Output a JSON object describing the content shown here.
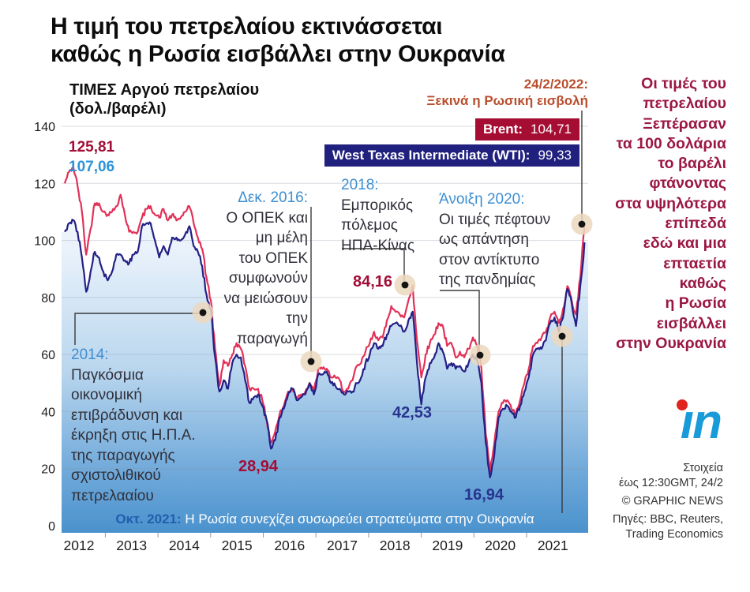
{
  "title": "Η τιμή του πετρελαίου εκτινάσσεται\nκαθώς η Ρωσία εισβάλλει στην Ουκρανία",
  "chart": {
    "subtitle": "ΤΙΜΕΣ Αργού πετρελαίου\n(δολ./βαρέλι)",
    "event_flag": "24/2/2022:\nΞεκινά η Ρωσική εισβολή",
    "badges": {
      "brent_label": "Brent:",
      "brent_value": "104,71",
      "wti_label": "West Texas Intermediate (WTI):",
      "wti_value": "99,33"
    },
    "start_labels": {
      "brent": "125,81",
      "wti": "107,06"
    },
    "value_labels": {
      "peak_2018": "84,16",
      "low_2016": "28,94",
      "low_2018": "42,53",
      "low_2020": "16,94"
    },
    "banner": {
      "prefix": "Οκτ. 2021:",
      "text": " Η Ρωσία συνεχίζει συσωρεύει στρατεύματα στην Ουκρανία"
    },
    "annotations": {
      "a2014": {
        "heading": "2014:",
        "body": "Παγκόσμια\nοικονομική\nεπιβράδυνση και\nέκρηξη στις Η.Π.Α.\nτης παραγωγής\nσχιστολιθικού\nπετρελααίου"
      },
      "a2016": {
        "heading": "Δεκ. 2016:",
        "body": "Ο ΟΠΕΚ και\nμη μέλη\nτου ΟΠΕΚ\nσυμφωνούν\nνα μειώσουν\nτην\nπαραγωγή"
      },
      "a2018": {
        "heading": "2018:",
        "body": "Εμπορικός\nπόλεμος\nΗΠΑ-Κίνας"
      },
      "a2020": {
        "heading": "Άνοιξη 2020:",
        "body": "Οι τιμές πέφτουν\nως απάντηση\nστον αντίκτυπο\nτης πανδημίας"
      }
    }
  },
  "sidebar": {
    "headline": "Οι τιμές του\nπετρελαίου\nΞεπέρασαν\nτα 100 δολάρια\nτο βαρέλι\nφτάνοντας\nστα υψηλότερα\nεπίπεδά\nεδώ και μια\nεπταετία\nκαθώς\nη Ρωσία\nεισβάλλει\nστην Ουκρανία"
  },
  "footer": {
    "logo_glyph": "ın",
    "data_note": "Στοιχεία\nέως 12:30GMT, 24/2",
    "copyright": "© GRAPHIC NEWS",
    "sources": "Πηγές: BBC, Reuters,\nTrading Economics"
  },
  "colors": {
    "brent_line": "#e23158",
    "brent_dark": "#a30d35",
    "wti_line": "#232086",
    "wti_label": "#28338f",
    "wti_light": "#2d93d8",
    "heading_blue": "#3e8ed2",
    "rust": "#b84e2d",
    "sidebar_maroon": "#9b1743",
    "banner_prefix": "#1f5fae",
    "badge_brent_bg": "#a60d33",
    "badge_wti_bg": "#20207e",
    "halo": "#ecd8bd",
    "grid": "#8b98a8"
  },
  "chart_data": {
    "type": "line",
    "title": "ΤΙΜΕΣ Αργού πετρελαίου (δολ./βαρέλι)",
    "ylabel": "δολ./βαρέλι",
    "ylim": [
      0,
      140
    ],
    "yticks": [
      0,
      20,
      40,
      60,
      80,
      100,
      120,
      140
    ],
    "x_labels": [
      "2012",
      "2013",
      "2014",
      "2015",
      "2016",
      "2017",
      "2018",
      "2019",
      "2020",
      "2021"
    ],
    "x_start": "2012-01",
    "x_end": "2022-02",
    "interval": "monthly",
    "grid": true,
    "legend_position": "top-right",
    "series": [
      {
        "name": "Brent",
        "values": [
          120,
          124,
          125.81,
          119,
          110,
          95,
          104,
          113,
          113,
          110,
          109,
          110,
          112,
          116,
          109,
          103,
          103,
          103,
          108,
          111,
          112,
          109,
          108,
          111,
          107,
          109,
          107,
          108,
          110,
          112,
          106,
          101,
          97,
          87,
          79,
          62,
          49,
          58,
          56,
          60,
          64,
          62,
          56,
          48,
          48,
          48,
          44,
          37,
          28.94,
          33,
          39,
          42,
          47,
          48,
          45,
          46,
          47,
          50,
          47,
          55,
          55,
          55,
          52,
          52,
          51,
          47,
          48,
          51,
          56,
          57,
          61,
          64,
          68,
          65,
          66,
          72,
          77,
          75,
          74,
          73,
          79,
          84.16,
          65,
          52,
          60,
          64,
          67,
          71,
          70,
          63,
          64,
          59,
          61,
          59,
          62,
          66,
          63,
          55,
          32,
          19,
          29,
          40,
          43,
          44,
          41,
          39,
          44,
          50,
          55,
          63,
          64,
          66,
          68,
          73,
          75,
          71,
          76,
          84,
          79,
          74,
          87,
          104.71
        ]
      },
      {
        "name": "West Texas Intermediate (WTI)",
        "values": [
          103,
          106,
          107.06,
          103,
          94,
          82,
          89,
          96,
          94,
          89,
          86,
          89,
          95,
          95,
          93,
          92,
          95,
          96,
          105,
          106,
          106,
          100,
          94,
          98,
          95,
          101,
          101,
          100,
          102,
          105,
          98,
          96,
          91,
          81,
          76,
          59,
          47,
          51,
          48,
          57,
          60,
          59,
          51,
          43,
          45,
          46,
          42,
          37,
          27,
          30,
          38,
          41,
          46,
          48,
          44,
          45,
          46,
          50,
          46,
          53,
          53,
          54,
          50,
          49,
          48,
          46,
          47,
          47,
          50,
          52,
          57,
          60,
          64,
          62,
          63,
          67,
          70,
          71,
          70,
          68,
          72,
          75,
          57,
          42.53,
          52,
          57,
          59,
          64,
          61,
          55,
          57,
          55,
          56,
          54,
          57,
          60,
          58,
          50,
          29,
          16.94,
          25,
          38,
          41,
          42,
          40,
          38,
          42,
          47,
          52,
          60,
          62,
          62,
          65,
          71,
          73,
          68,
          73,
          83,
          78,
          70,
          84,
          99.33
        ]
      }
    ],
    "event_markers": [
      "2014 slowdown",
      "Dec 2016 OPEC cut",
      "Oct 2018 peak 84.16",
      "Spring 2020 pandemic",
      "Oct 2021 troop build-up",
      "24/2/2022 invasion"
    ]
  }
}
